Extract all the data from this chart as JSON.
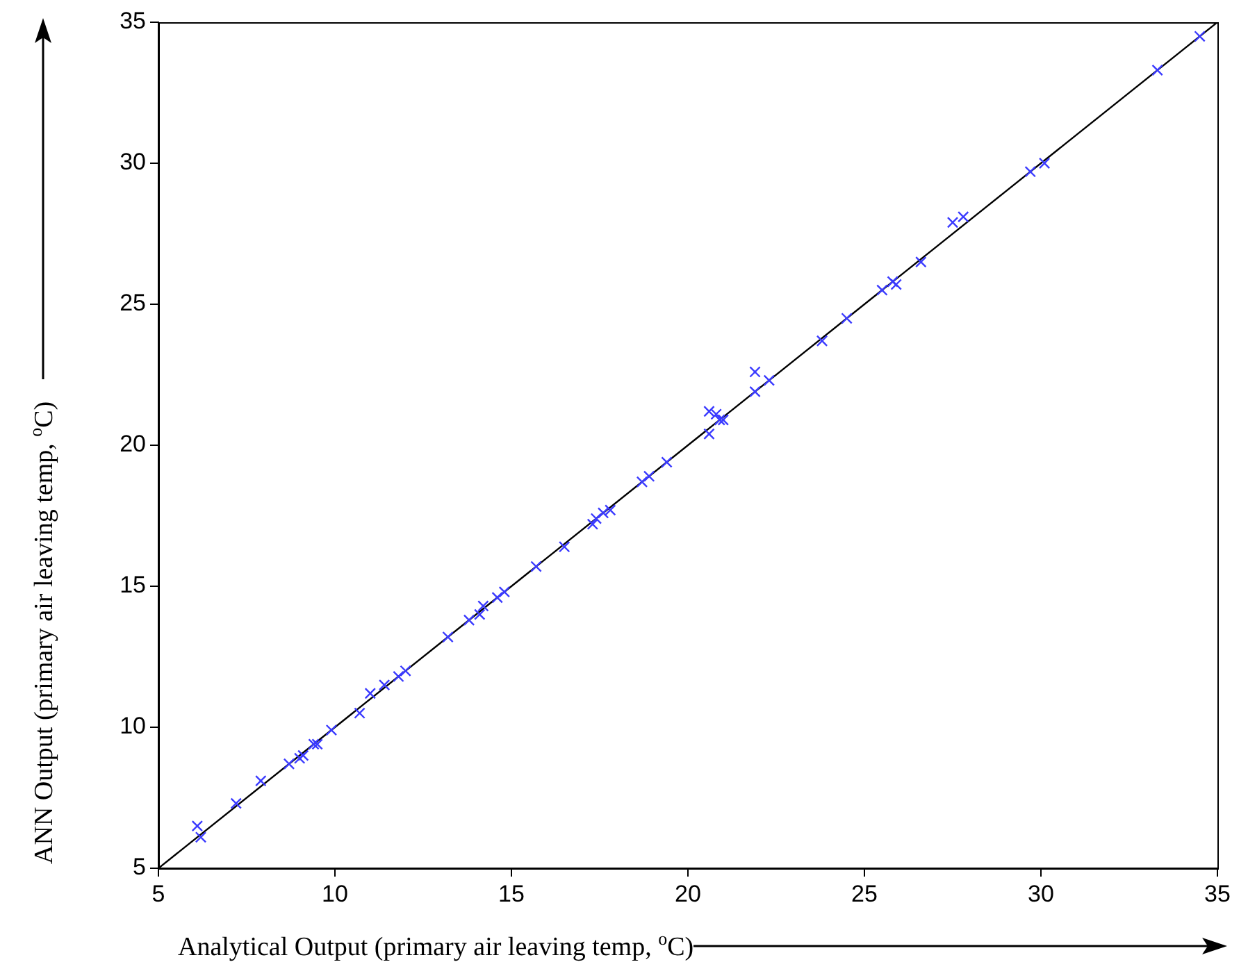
{
  "chart_data": {
    "type": "scatter",
    "xlabel": "Analytical Output (primary air leaving temp, $^{o}$C)",
    "ylabel": "ANN Output (primary air leaving temp, $^{o}$C)",
    "xlim": [
      5,
      35
    ],
    "ylim": [
      5,
      35
    ],
    "xticks": [
      5,
      10,
      15,
      20,
      25,
      30,
      35
    ],
    "yticks": [
      5,
      10,
      15,
      20,
      25,
      30,
      35
    ],
    "grid": false,
    "legend": false,
    "marker": "cross",
    "series": [
      {
        "color": "#3a3aff",
        "x": [
          6.1,
          6.2,
          7.2,
          7.9,
          8.7,
          9.0,
          9.1,
          9.4,
          9.5,
          9.9,
          10.7,
          11.0,
          11.4,
          11.8,
          12.0,
          13.2,
          13.8,
          14.1,
          14.2,
          14.6,
          14.8,
          15.7,
          16.5,
          17.3,
          17.4,
          17.6,
          17.8,
          18.7,
          18.9,
          19.4,
          20.6,
          20.6,
          20.8,
          20.9,
          21.0,
          21.9,
          21.9,
          22.3,
          23.8,
          24.5,
          25.5,
          25.8,
          25.9,
          26.6,
          27.5,
          27.8,
          29.7,
          30.1,
          33.3,
          34.5
        ],
        "values": [
          6.5,
          6.1,
          7.3,
          8.1,
          8.7,
          8.9,
          9.0,
          9.4,
          9.4,
          9.9,
          10.5,
          11.2,
          11.5,
          11.8,
          12.0,
          13.2,
          13.8,
          14.0,
          14.3,
          14.6,
          14.8,
          15.7,
          16.4,
          17.2,
          17.4,
          17.6,
          17.7,
          18.7,
          18.9,
          19.4,
          20.4,
          21.2,
          21.1,
          20.9,
          20.9,
          22.6,
          21.9,
          22.3,
          23.7,
          24.5,
          25.5,
          25.8,
          25.7,
          26.5,
          27.9,
          28.1,
          29.7,
          30.0,
          33.3,
          34.5
        ]
      },
      {
        "type": "line",
        "marker": "none",
        "color": "#000000",
        "x": [
          5,
          35
        ],
        "values": [
          5,
          35
        ]
      }
    ]
  }
}
